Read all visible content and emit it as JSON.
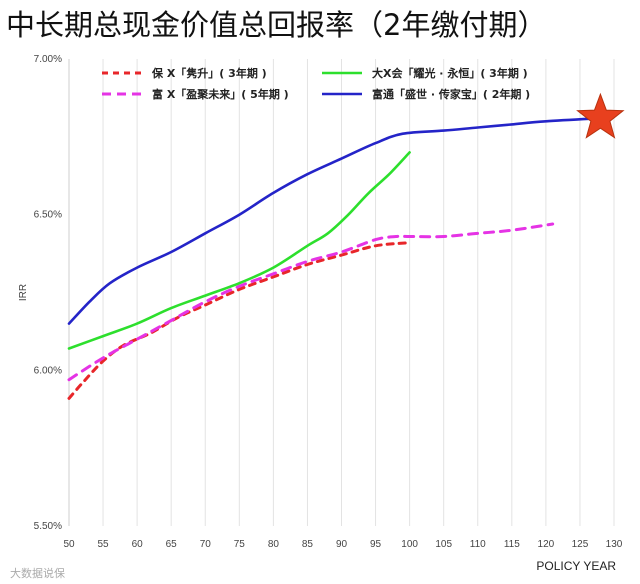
{
  "chart_data": {
    "type": "line",
    "title": "中长期总现金价值总回报率（2年缴付期）",
    "xlabel": "POLICY YEAR",
    "ylabel": "IRR",
    "x_ticks": [
      50,
      55,
      60,
      65,
      70,
      75,
      80,
      85,
      90,
      95,
      100,
      105,
      110,
      115,
      120,
      125,
      130
    ],
    "y_ticks": [
      {
        "value": 5.5,
        "label": "5.50%"
      },
      {
        "value": 6.0,
        "label": "6.00%"
      },
      {
        "value": 6.5,
        "label": "6.50%"
      },
      {
        "value": 7.0,
        "label": "7.00%"
      }
    ],
    "xlim": [
      50,
      130
    ],
    "ylim": [
      5.5,
      7.0
    ],
    "grid": "vertical",
    "legend_position": "top",
    "series": [
      {
        "name": "保 X「隽升」( 3年期 )",
        "color": "#e8262a",
        "style": "dashed",
        "x": [
          50,
          52,
          55,
          58,
          62,
          66,
          70,
          75,
          80,
          85,
          90,
          95,
          100
        ],
        "y": [
          5.91,
          5.96,
          6.03,
          6.08,
          6.12,
          6.17,
          6.21,
          6.26,
          6.3,
          6.34,
          6.37,
          6.4,
          6.41
        ]
      },
      {
        "name": "富 X「盈聚未来」( 5年期 )",
        "color": "#e533e5",
        "style": "dashed",
        "x": [
          50,
          55,
          60,
          65,
          70,
          75,
          80,
          85,
          90,
          95,
          98,
          100,
          105,
          110,
          115,
          121
        ],
        "y": [
          5.97,
          6.04,
          6.1,
          6.16,
          6.22,
          6.27,
          6.31,
          6.35,
          6.38,
          6.42,
          6.43,
          6.43,
          6.43,
          6.44,
          6.45,
          6.47
        ]
      },
      {
        "name": "大X会「耀光 · 永恒」( 3年期 )",
        "color": "#2ddf2d",
        "style": "solid",
        "x": [
          50,
          55,
          60,
          65,
          70,
          75,
          80,
          85,
          88,
          91,
          94,
          97,
          100
        ],
        "y": [
          6.07,
          6.11,
          6.15,
          6.2,
          6.24,
          6.28,
          6.33,
          6.4,
          6.44,
          6.5,
          6.57,
          6.63,
          6.7
        ]
      },
      {
        "name": "富通「盛世 · 传家宝」( 2年期 )",
        "color": "#2424c8",
        "style": "solid",
        "x": [
          50,
          53,
          56,
          60,
          65,
          70,
          75,
          80,
          85,
          90,
          95,
          99,
          105,
          110,
          115,
          120,
          128
        ],
        "y": [
          6.15,
          6.22,
          6.28,
          6.33,
          6.38,
          6.44,
          6.5,
          6.57,
          6.63,
          6.68,
          6.73,
          6.76,
          6.77,
          6.78,
          6.79,
          6.8,
          6.81
        ]
      }
    ],
    "annotations": [
      {
        "type": "star",
        "x": 128,
        "y": 6.81,
        "color": "#e8401e"
      }
    ],
    "watermark": "大数据说保"
  }
}
